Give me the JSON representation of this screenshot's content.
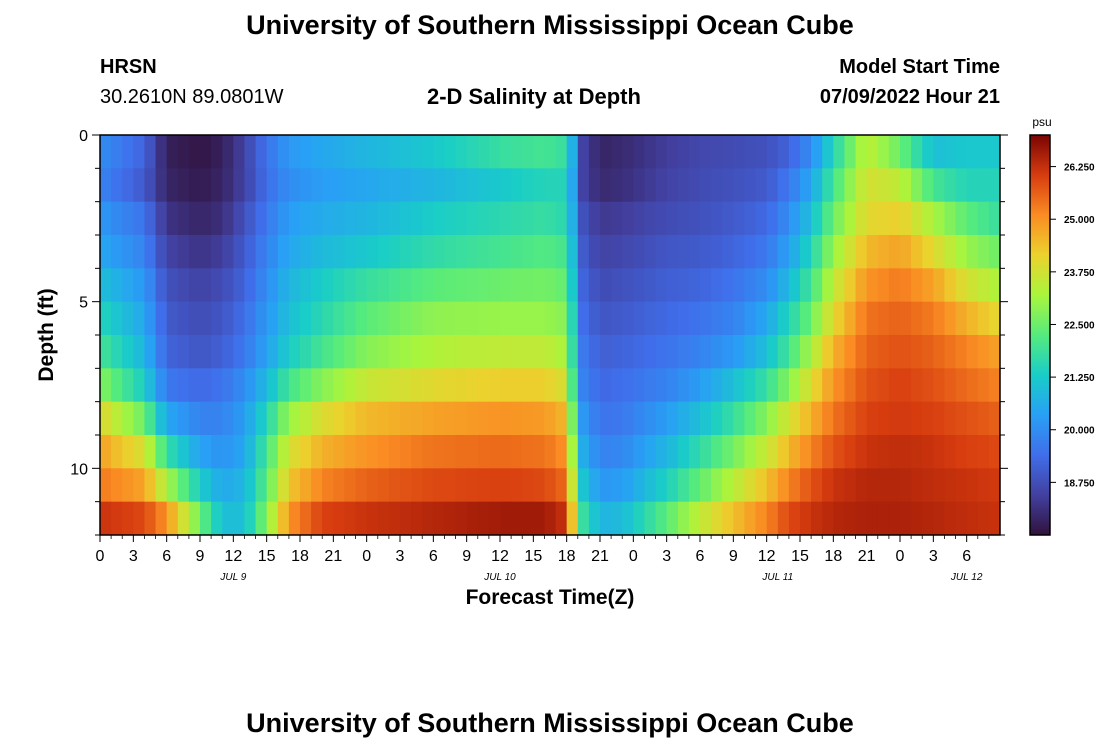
{
  "header": {
    "title": "University of Southern Mississippi Ocean Cube",
    "footer_title": "University of Southern Mississippi Ocean Cube",
    "station": "HRSN",
    "coords": "30.2610N  89.0801W",
    "subtitle": "2-D Salinity at Depth",
    "model_start_label": "Model Start Time",
    "model_start_value": "07/09/2022 Hour 21"
  },
  "chart_data": {
    "type": "heatmap",
    "title": "2-D Salinity at Depth",
    "xlabel": "Forecast Time(Z)",
    "ylabel": "Depth (ft)",
    "ylim": [
      0,
      12
    ],
    "y_ticks": [
      0,
      5,
      10
    ],
    "x_hours_range": [
      0,
      81
    ],
    "x_ticks": [
      {
        "h": 0,
        "label": "0"
      },
      {
        "h": 3,
        "label": "3"
      },
      {
        "h": 6,
        "label": "6"
      },
      {
        "h": 9,
        "label": "9"
      },
      {
        "h": 12,
        "label": "12"
      },
      {
        "h": 15,
        "label": "15"
      },
      {
        "h": 18,
        "label": "18"
      },
      {
        "h": 21,
        "label": "21"
      },
      {
        "h": 24,
        "label": "0"
      },
      {
        "h": 27,
        "label": "3"
      },
      {
        "h": 30,
        "label": "6"
      },
      {
        "h": 33,
        "label": "9"
      },
      {
        "h": 36,
        "label": "12"
      },
      {
        "h": 39,
        "label": "15"
      },
      {
        "h": 42,
        "label": "18"
      },
      {
        "h": 45,
        "label": "21"
      },
      {
        "h": 48,
        "label": "0"
      },
      {
        "h": 51,
        "label": "3"
      },
      {
        "h": 54,
        "label": "6"
      },
      {
        "h": 57,
        "label": "9"
      },
      {
        "h": 60,
        "label": "12"
      },
      {
        "h": 63,
        "label": "15"
      },
      {
        "h": 66,
        "label": "18"
      },
      {
        "h": 69,
        "label": "21"
      },
      {
        "h": 72,
        "label": "0"
      },
      {
        "h": 75,
        "label": "3"
      },
      {
        "h": 78,
        "label": "6"
      }
    ],
    "day_labels": [
      {
        "h": 12,
        "label": "JUL 9"
      },
      {
        "h": 36,
        "label": "JUL 10"
      },
      {
        "h": 61,
        "label": "JUL 11"
      },
      {
        "h": 78,
        "label": "JUL 12"
      }
    ],
    "colorbar": {
      "unit": "psu",
      "min": 17.5,
      "max": 27.0,
      "ticks": [
        "26.250",
        "25.000",
        "23.750",
        "22.500",
        "21.250",
        "20.000",
        "18.750"
      ]
    },
    "depth_levels_ft": [
      0.5,
      1.5,
      2.5,
      3.5,
      4.5,
      5.5,
      6.5,
      7.5,
      8.5,
      9.5,
      10.5,
      11.5
    ],
    "time_keys_h": [
      0,
      4,
      6,
      9,
      11,
      13,
      15,
      17,
      20,
      24,
      30,
      36,
      40,
      42,
      42.6,
      43.5,
      45,
      47,
      51,
      54,
      57,
      60,
      62,
      64,
      66,
      69,
      72,
      75,
      78,
      81
    ],
    "salinity_psu": [
      [
        20.0,
        19.2,
        17.8,
        17.6,
        17.8,
        18.5,
        19.5,
        20.2,
        20.5,
        20.8,
        21.2,
        21.8,
        22.0,
        21.8,
        20.5,
        18.5,
        17.9,
        18.0,
        18.4,
        18.6,
        18.7,
        18.8,
        19.2,
        20.0,
        21.5,
        23.5,
        22.5,
        21.0,
        21.2,
        21.2
      ],
      [
        19.8,
        19.0,
        17.9,
        17.7,
        17.9,
        18.5,
        19.4,
        20.0,
        20.3,
        20.5,
        20.8,
        21.2,
        21.5,
        21.5,
        20.3,
        18.5,
        18.0,
        18.1,
        18.5,
        18.7,
        18.8,
        19.0,
        19.6,
        20.5,
        22.0,
        23.8,
        23.5,
        22.0,
        21.5,
        21.5
      ],
      [
        20.2,
        19.5,
        18.2,
        17.9,
        18.1,
        18.8,
        19.6,
        20.3,
        20.6,
        20.8,
        21.3,
        21.6,
        21.8,
        21.6,
        20.5,
        18.8,
        18.3,
        18.4,
        18.7,
        18.8,
        19.0,
        19.3,
        20.0,
        21.0,
        22.5,
        24.0,
        24.2,
        23.2,
        22.3,
        21.8
      ],
      [
        20.5,
        19.8,
        18.5,
        18.2,
        18.4,
        19.0,
        19.8,
        20.5,
        20.9,
        21.2,
        21.7,
        22.0,
        22.2,
        22.0,
        20.8,
        19.0,
        18.5,
        18.6,
        18.9,
        19.0,
        19.2,
        19.6,
        20.4,
        21.5,
        23.0,
        24.5,
        24.8,
        24.0,
        23.0,
        22.5
      ],
      [
        21.0,
        20.2,
        18.8,
        18.5,
        18.7,
        19.2,
        20.0,
        20.8,
        21.3,
        21.8,
        22.3,
        22.5,
        22.6,
        22.4,
        21.0,
        19.2,
        18.7,
        18.8,
        19.1,
        19.2,
        19.5,
        20.0,
        20.9,
        22.0,
        23.5,
        25.0,
        25.3,
        24.8,
        23.8,
        23.2
      ],
      [
        21.5,
        20.5,
        19.0,
        18.7,
        18.9,
        19.4,
        20.2,
        21.0,
        21.6,
        22.3,
        22.9,
        23.0,
        23.0,
        22.8,
        21.3,
        19.4,
        18.9,
        19.0,
        19.3,
        19.5,
        19.8,
        20.5,
        21.5,
        22.5,
        24.0,
        25.4,
        25.6,
        25.3,
        24.6,
        24.0
      ],
      [
        22.0,
        20.8,
        19.2,
        18.9,
        19.1,
        19.6,
        20.4,
        21.3,
        22.0,
        22.8,
        23.3,
        23.5,
        23.5,
        23.2,
        21.5,
        19.6,
        19.1,
        19.2,
        19.5,
        19.8,
        20.2,
        21.0,
        22.0,
        23.2,
        24.6,
        25.6,
        25.8,
        25.6,
        25.2,
        24.8
      ],
      [
        22.8,
        21.3,
        19.6,
        19.3,
        19.5,
        20.0,
        20.9,
        22.0,
        22.8,
        23.6,
        24.0,
        24.2,
        24.2,
        23.8,
        21.8,
        19.8,
        19.3,
        19.4,
        19.8,
        20.3,
        21.0,
        21.8,
        22.8,
        23.9,
        25.0,
        25.8,
        26.0,
        25.8,
        25.5,
        25.2
      ],
      [
        24.0,
        22.5,
        20.5,
        19.8,
        19.8,
        20.3,
        21.5,
        23.0,
        23.9,
        24.5,
        24.8,
        25.0,
        24.9,
        24.5,
        22.3,
        20.2,
        19.5,
        19.6,
        20.3,
        21.0,
        21.8,
        22.8,
        23.8,
        24.6,
        25.4,
        26.0,
        26.1,
        26.0,
        25.8,
        25.6
      ],
      [
        24.8,
        23.8,
        21.8,
        20.4,
        20.1,
        20.5,
        22.0,
        23.8,
        24.6,
        25.0,
        25.4,
        25.5,
        25.4,
        25.0,
        22.8,
        20.6,
        19.8,
        19.9,
        20.8,
        21.7,
        22.6,
        23.6,
        24.5,
        25.2,
        25.8,
        26.2,
        26.3,
        26.2,
        26.0,
        25.9
      ],
      [
        25.3,
        24.8,
        23.2,
        21.3,
        20.5,
        20.8,
        22.3,
        24.3,
        25.2,
        25.6,
        25.9,
        26.0,
        25.9,
        25.5,
        23.3,
        21.1,
        20.2,
        20.3,
        21.4,
        22.4,
        23.4,
        24.4,
        25.2,
        25.8,
        26.2,
        26.4,
        26.4,
        26.3,
        26.2,
        26.1
      ],
      [
        26.2,
        25.9,
        25.0,
        22.5,
        21.0,
        21.0,
        22.8,
        25.0,
        26.0,
        26.2,
        26.4,
        26.6,
        26.6,
        26.2,
        24.0,
        21.8,
        20.8,
        20.9,
        22.3,
        23.5,
        24.4,
        25.2,
        25.9,
        26.2,
        26.4,
        26.5,
        26.5,
        26.4,
        26.3,
        26.2
      ]
    ]
  }
}
